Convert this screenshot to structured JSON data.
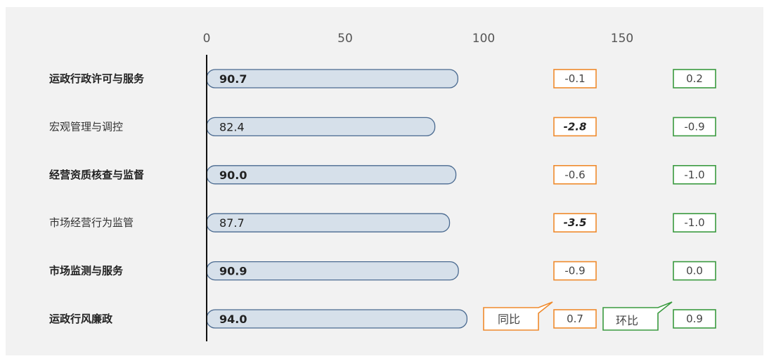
{
  "chart_data": {
    "type": "bar",
    "orientation": "horizontal",
    "categories": [
      "运政行政许可与服务",
      "宏观管理与调控",
      "经营资质核查与监督",
      "市场经营行为监管",
      "市场监测与服务",
      "运政行风廉政"
    ],
    "category_bold": [
      true,
      false,
      true,
      false,
      true,
      true
    ],
    "values": [
      90.7,
      82.4,
      90.0,
      87.7,
      90.9,
      94.0
    ],
    "value_labels": [
      "90.7",
      "82.4",
      "90.0",
      "87.7",
      "90.9",
      "94.0"
    ],
    "xticks": [
      "0",
      "50",
      "100",
      "150"
    ],
    "xlim": [
      0,
      190
    ],
    "bar_color": "#d6e0ea",
    "bar_edge_color": "#4a6a90",
    "yoy": {
      "name": "同比",
      "color": "#ef8a2c",
      "labels": [
        "-0.1",
        "-2.8",
        "-0.6",
        "-3.5",
        "-0.9",
        "0.7"
      ],
      "emphasis": [
        false,
        true,
        false,
        true,
        false,
        false
      ]
    },
    "mom": {
      "name": "环比",
      "color": "#3a9a3f",
      "labels": [
        "0.2",
        "-0.9",
        "-1.0",
        "-1.0",
        "0.0",
        "0.9"
      ]
    }
  }
}
